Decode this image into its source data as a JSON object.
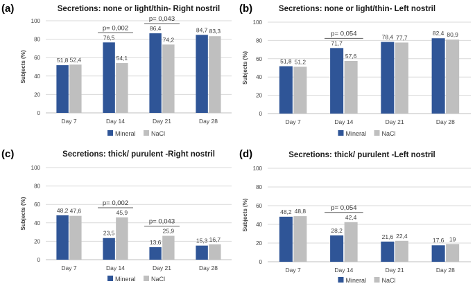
{
  "colors": {
    "mineral": "#2f5597",
    "nacl": "#bfbfbf",
    "grid": "#d9d9d9",
    "axis": "#bfbfbf",
    "bracket": "#595959"
  },
  "chart_data": [
    {
      "panel": "(a)",
      "type": "bar",
      "title": "Secretions: none or light/thin- Right nostril",
      "ylabel": "Subjects (%)",
      "xlabel": "",
      "ylim": [
        0,
        100
      ],
      "yticks": [
        0,
        20,
        40,
        60,
        80,
        100
      ],
      "categories": [
        "Day 7",
        "Day 14",
        "Day 21",
        "Day 28"
      ],
      "series": [
        {
          "name": "Mineral",
          "values": [
            51.8,
            76.5,
            86.4,
            84.7
          ],
          "labels": [
            "51,8",
            "76,5",
            "86,4",
            "84,7"
          ]
        },
        {
          "name": "NaCl",
          "values": [
            52.4,
            54.1,
            74.2,
            83.3
          ],
          "labels": [
            "52,4",
            "54,1",
            "74,2",
            "83,3"
          ]
        }
      ],
      "legend": [
        "Mineral",
        "NaCl"
      ],
      "legend_position": "bottom",
      "annotations": [
        {
          "category": "Day 14",
          "text": "p= 0,002"
        },
        {
          "category": "Day 21",
          "text": "p= 0,043"
        }
      ]
    },
    {
      "panel": "(b)",
      "type": "bar",
      "title": "Secretions: none or light/thin- Left nostril",
      "ylabel": "Subjects (%)",
      "xlabel": "",
      "ylim": [
        0,
        100
      ],
      "yticks": [
        0,
        20,
        40,
        60,
        80,
        100
      ],
      "categories": [
        "Day 7",
        "Day 14",
        "Day 21",
        "Day 28"
      ],
      "series": [
        {
          "name": "Mineral",
          "values": [
            51.8,
            71.7,
            78.4,
            82.4
          ],
          "labels": [
            "51,8",
            "71,7",
            "78,4",
            "82,4"
          ]
        },
        {
          "name": "NaCl",
          "values": [
            51.2,
            57.6,
            77.7,
            80.9
          ],
          "labels": [
            "51,2",
            "57,6",
            "77,7",
            "80,9"
          ]
        }
      ],
      "legend": [
        "Mineral",
        "NaCl"
      ],
      "legend_position": "bottom",
      "annotations": [
        {
          "category": "Day 14",
          "text": "p= 0,054"
        }
      ]
    },
    {
      "panel": "(c)",
      "type": "bar",
      "title": "Secretions: thick/ purulent -Right nostril",
      "ylabel": "Subjects (%)",
      "xlabel": "",
      "ylim": [
        0,
        100
      ],
      "yticks": [
        0,
        20,
        40,
        60,
        80,
        100
      ],
      "categories": [
        "Day 7",
        "Day 14",
        "Day 21",
        "Day 28"
      ],
      "series": [
        {
          "name": "Mineral",
          "values": [
            48.2,
            23.5,
            13.6,
            15.3
          ],
          "labels": [
            "48,2",
            "23,5",
            "13,6",
            "15,3"
          ]
        },
        {
          "name": "NaCl",
          "values": [
            47.6,
            45.9,
            25.9,
            16.7
          ],
          "labels": [
            "47,6",
            "45,9",
            "25,9",
            "16,7"
          ]
        }
      ],
      "legend": [
        "Mineral",
        "NaCl"
      ],
      "legend_position": "bottom",
      "annotations": [
        {
          "category": "Day 14",
          "text": "p= 0,002"
        },
        {
          "category": "Day 21",
          "text": "p= 0,043"
        }
      ]
    },
    {
      "panel": "(d)",
      "type": "bar",
      "title": "Secretions: thick/ purulent -Left nostril",
      "ylabel": "Subjects (%)",
      "xlabel": "",
      "ylim": [
        0,
        100
      ],
      "yticks": [
        0,
        20,
        40,
        60,
        80,
        100
      ],
      "categories": [
        "Day 7",
        "Day 14",
        "Day 21",
        "Day 28"
      ],
      "series": [
        {
          "name": "Mineral",
          "values": [
            48.2,
            28.2,
            21.6,
            17.6
          ],
          "labels": [
            "48,2",
            "28,2",
            "21,6",
            "17,6"
          ]
        },
        {
          "name": "NaCl",
          "values": [
            48.8,
            42.4,
            22.4,
            19.0
          ],
          "labels": [
            "48,8",
            "42,4",
            "22,4",
            "19"
          ]
        }
      ],
      "legend": [
        "Mineral",
        "NaCl"
      ],
      "legend_position": "bottom",
      "annotations": [
        {
          "category": "Day 14",
          "text": "p= 0,054"
        }
      ]
    }
  ]
}
